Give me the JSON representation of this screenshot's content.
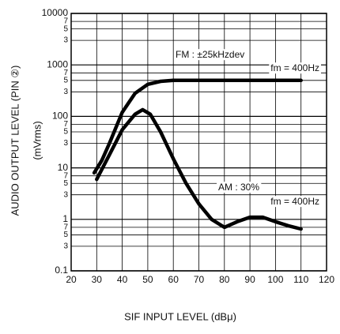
{
  "chart_data": {
    "type": "line",
    "xlabel": "SIF INPUT LEVEL (dBμ)",
    "ylabel": "AUDIO OUTPUT LEVEL (PIN ②)",
    "yunit": "(mVrms)",
    "log_y": true,
    "grid": true,
    "xlim": [
      20,
      120
    ],
    "xticks": [
      20,
      30,
      40,
      50,
      60,
      70,
      80,
      90,
      100,
      110,
      120
    ],
    "ylim": [
      0.1,
      10000
    ],
    "yticks": [
      0.1,
      {
        "value": 0.3,
        "label": "3"
      },
      {
        "value": 0.5,
        "label": "5"
      },
      {
        "value": 0.7,
        "label": "7"
      },
      1,
      {
        "value": 3,
        "label": "3"
      },
      {
        "value": 5,
        "label": "5"
      },
      {
        "value": 7,
        "label": "7"
      },
      10,
      {
        "value": 30,
        "label": "3"
      },
      {
        "value": 50,
        "label": "5"
      },
      {
        "value": 70,
        "label": "7"
      },
      100,
      {
        "value": 300,
        "label": "3"
      },
      {
        "value": 500,
        "label": "5"
      },
      {
        "value": 700,
        "label": "7"
      },
      1000,
      {
        "value": 3000,
        "label": "3"
      },
      {
        "value": 5000,
        "label": "5"
      },
      {
        "value": 7000,
        "label": "7"
      },
      10000
    ],
    "series": [
      {
        "color": "#000000",
        "x": [
          29,
          32,
          35,
          40,
          45,
          50,
          55,
          60,
          70,
          80,
          90,
          100,
          110
        ],
        "values": [
          8,
          14,
          30,
          120,
          280,
          420,
          480,
          500,
          500,
          500,
          500,
          500,
          500
        ]
      },
      {
        "color": "#000000",
        "x": [
          30,
          35,
          40,
          45,
          48,
          51,
          55,
          60,
          65,
          70,
          75,
          80,
          85,
          90,
          95,
          100,
          105,
          110
        ],
        "values": [
          6,
          18,
          55,
          110,
          135,
          110,
          50,
          15,
          5,
          2,
          1,
          0.7,
          0.9,
          1.1,
          1.1,
          0.9,
          0.75,
          0.65
        ]
      }
    ],
    "annotations": [
      "FM : ±25kHzdev",
      "fm = 400Hz",
      "AM : 30%",
      "fm = 400Hz"
    ]
  }
}
